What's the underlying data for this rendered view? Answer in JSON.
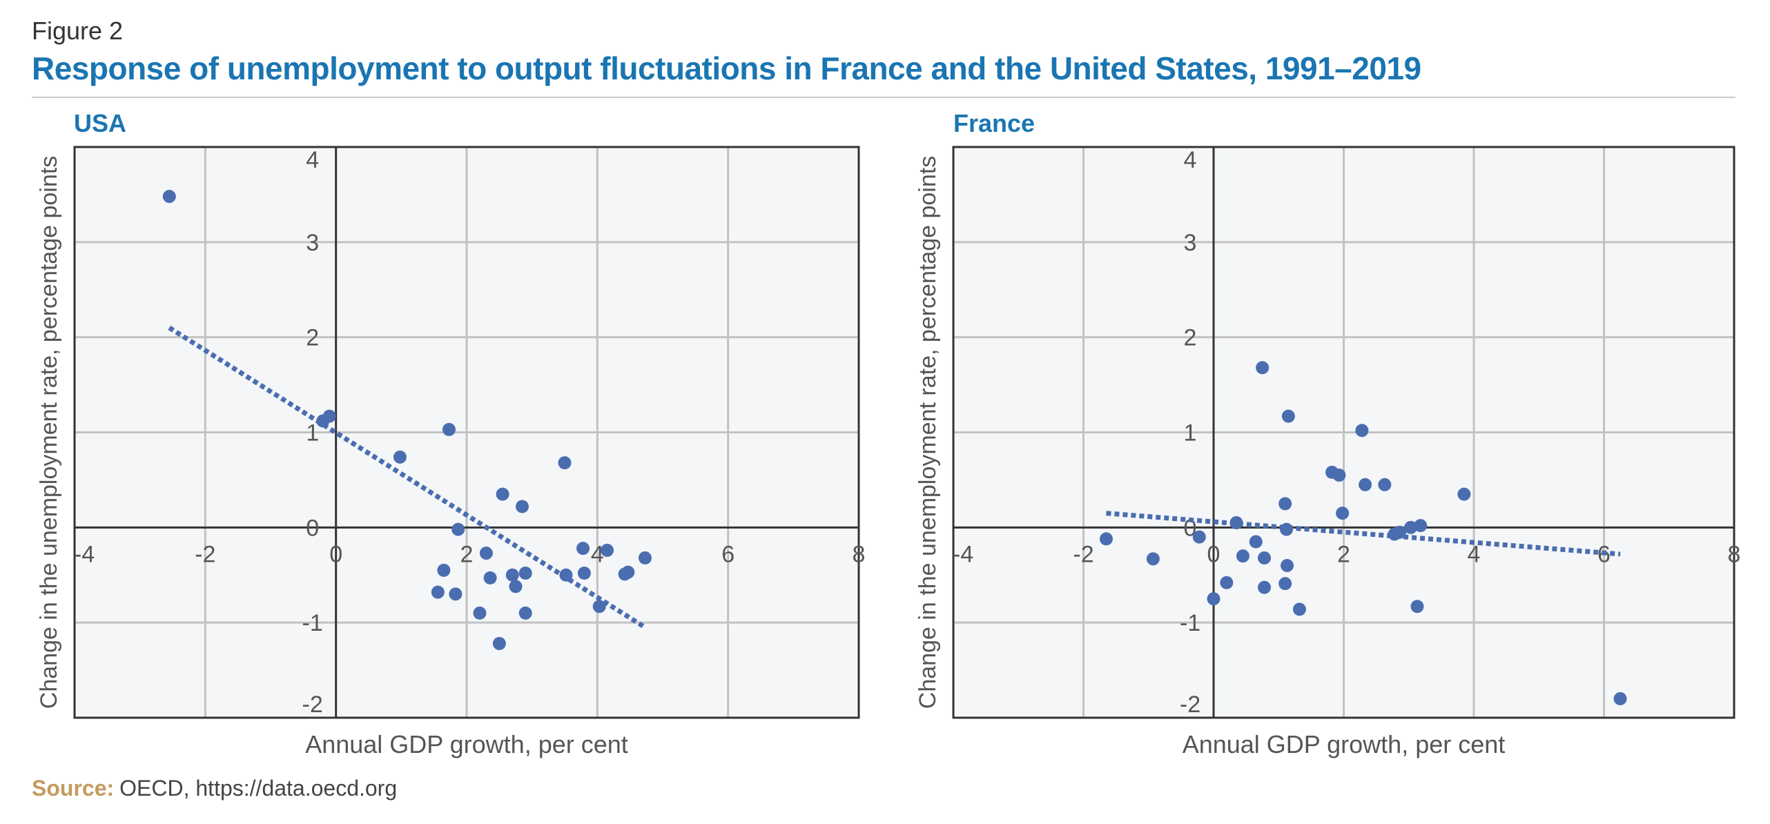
{
  "figure": {
    "label": "Figure 2",
    "title": "Response of unemployment to output fluctuations in France and the United States, 1991–2019"
  },
  "source": {
    "label": "Source:",
    "text": "OECD, https://data.oecd.org"
  },
  "colors": {
    "title": "#1a75b2",
    "points": "#4a6db0",
    "grid": "#c2c2c2",
    "plot_bg": "#f4f6f8",
    "source_label": "#c49a5d"
  },
  "chart_data": [
    {
      "type": "scatter",
      "title": "USA",
      "xlabel": "Annual GDP growth, per cent",
      "ylabel": "Change in the unemployment rate, percentage points",
      "xlim": [
        -4,
        8
      ],
      "ylim": [
        -2,
        4
      ],
      "xticks": [
        -4,
        -2,
        0,
        2,
        4,
        6,
        8
      ],
      "yticks": [
        -2,
        -1,
        0,
        1,
        2,
        3,
        4
      ],
      "xtick_labels": [
        "-4",
        "-2",
        "0",
        "2",
        "4",
        "6",
        "8"
      ],
      "ytick_labels": [
        "-2",
        "-1",
        "0",
        "1",
        "2",
        "3",
        "4"
      ],
      "grid": true,
      "points": [
        {
          "x": -2.55,
          "y": 3.48
        },
        {
          "x": -0.2,
          "y": 1.12
        },
        {
          "x": -0.1,
          "y": 1.17
        },
        {
          "x": 0.98,
          "y": 0.74
        },
        {
          "x": 1.73,
          "y": 1.03
        },
        {
          "x": 1.87,
          "y": -0.02
        },
        {
          "x": 1.65,
          "y": -0.45
        },
        {
          "x": 1.56,
          "y": -0.68
        },
        {
          "x": 1.83,
          "y": -0.7
        },
        {
          "x": 2.2,
          "y": -0.9
        },
        {
          "x": 2.3,
          "y": -0.27
        },
        {
          "x": 2.36,
          "y": -0.53
        },
        {
          "x": 2.55,
          "y": 0.35
        },
        {
          "x": 2.5,
          "y": -1.22
        },
        {
          "x": 2.7,
          "y": -0.5
        },
        {
          "x": 2.75,
          "y": -0.62
        },
        {
          "x": 2.85,
          "y": 0.22
        },
        {
          "x": 2.9,
          "y": -0.48
        },
        {
          "x": 2.9,
          "y": -0.9
        },
        {
          "x": 3.5,
          "y": 0.68
        },
        {
          "x": 3.52,
          "y": -0.5
        },
        {
          "x": 3.78,
          "y": -0.22
        },
        {
          "x": 3.8,
          "y": -0.48
        },
        {
          "x": 4.03,
          "y": -0.83
        },
        {
          "x": 4.15,
          "y": -0.24
        },
        {
          "x": 4.42,
          "y": -0.49
        },
        {
          "x": 4.47,
          "y": -0.47
        },
        {
          "x": 4.73,
          "y": -0.32
        }
      ],
      "trendline": {
        "x": [
          -2.55,
          4.73
        ],
        "y": [
          2.1,
          -1.05
        ],
        "style": "dotted"
      }
    },
    {
      "type": "scatter",
      "title": "France",
      "xlabel": "Annual GDP growth, per cent",
      "ylabel": "Change in the unemployment rate, percentage points",
      "xlim": [
        -4,
        8
      ],
      "ylim": [
        -2,
        4
      ],
      "xticks": [
        -4,
        -2,
        0,
        2,
        4,
        6,
        8
      ],
      "yticks": [
        -2,
        -1,
        0,
        1,
        2,
        3,
        4
      ],
      "xtick_labels": [
        "-4",
        "-2",
        "0",
        "2",
        "4",
        "6",
        "8"
      ],
      "ytick_labels": [
        "-2",
        "-1",
        "0",
        "1",
        "2",
        "3",
        "4"
      ],
      "grid": true,
      "points": [
        {
          "x": -1.65,
          "y": -0.12
        },
        {
          "x": -0.93,
          "y": -0.33
        },
        {
          "x": -0.22,
          "y": -0.1
        },
        {
          "x": 0.35,
          "y": 0.05
        },
        {
          "x": 0.45,
          "y": -0.3
        },
        {
          "x": 0.65,
          "y": -0.15
        },
        {
          "x": 0.75,
          "y": 1.68
        },
        {
          "x": 0.78,
          "y": -0.32
        },
        {
          "x": 0.78,
          "y": -0.63
        },
        {
          "x": 0.2,
          "y": -0.58
        },
        {
          "x": 0.0,
          "y": -0.75
        },
        {
          "x": 1.1,
          "y": 0.25
        },
        {
          "x": 1.12,
          "y": -0.02
        },
        {
          "x": 1.13,
          "y": -0.4
        },
        {
          "x": 1.1,
          "y": -0.59
        },
        {
          "x": 1.15,
          "y": 1.17
        },
        {
          "x": 1.32,
          "y": -0.86
        },
        {
          "x": 1.82,
          "y": 0.58
        },
        {
          "x": 1.93,
          "y": 0.55
        },
        {
          "x": 1.98,
          "y": 0.15
        },
        {
          "x": 2.28,
          "y": 1.02
        },
        {
          "x": 2.33,
          "y": 0.45
        },
        {
          "x": 2.63,
          "y": 0.45
        },
        {
          "x": 2.78,
          "y": -0.07
        },
        {
          "x": 2.86,
          "y": -0.05
        },
        {
          "x": 3.03,
          "y": 0.0
        },
        {
          "x": 3.13,
          "y": -0.83
        },
        {
          "x": 3.18,
          "y": 0.02
        },
        {
          "x": 3.85,
          "y": 0.35
        },
        {
          "x": 6.25,
          "y": -1.8
        }
      ],
      "trendline": {
        "x": [
          -1.65,
          6.25
        ],
        "y": [
          0.15,
          -0.28
        ],
        "style": "dotted"
      }
    }
  ]
}
